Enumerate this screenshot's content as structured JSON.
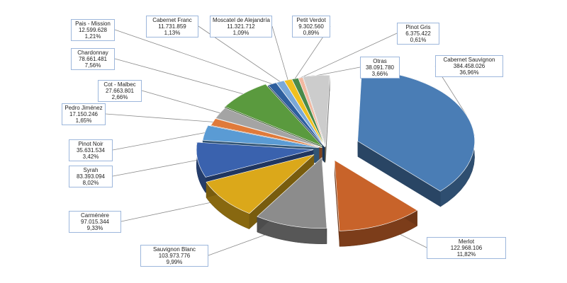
{
  "chart_data": {
    "type": "pie",
    "title": "",
    "categories": [
      "Cabernet Sauvignon",
      "Merlot",
      "Sauvignon Blanc",
      "Carménère",
      "Syrah",
      "Pinot Noir",
      "Pedro Jiménez",
      "Cot - Malbec",
      "Chardonnay",
      "Pais - Mission",
      "Cabernet Franc",
      "Moscatel de Alejandría",
      "Petit Verdot",
      "Pinot Gris",
      "Otras"
    ],
    "values": [
      384458026,
      122968106,
      103973776,
      97015344,
      83393094,
      35631534,
      17150246,
      27663801,
      78661481,
      12599628,
      11731859,
      11321712,
      9302560,
      6375422,
      38091780
    ],
    "value_labels": [
      "384.458.026",
      "122.968.106",
      "103.973.776",
      "97.015.344",
      "83.393.094",
      "35.631.534",
      "17.150.246",
      "27.663.801",
      "78.661.481",
      "12.599.628",
      "11.731.859",
      "11.321.712",
      "9.302.560",
      "6.375.422",
      "38.091.780"
    ],
    "percent_labels": [
      "36,96%",
      "11,82%",
      "9,99%",
      "9,33%",
      "8,02%",
      "3,42%",
      "1,65%",
      "2,66%",
      "7,56%",
      "1,21%",
      "1,13%",
      "1,09%",
      "0,89%",
      "0,61%",
      "3,66%"
    ],
    "colors": [
      "#4a7db5",
      "#c8632a",
      "#8c8c8c",
      "#dba81a",
      "#3a62ae",
      "#5a9bd4",
      "#e07a3a",
      "#a4a4a4",
      "#5a9a3e",
      "#2e5f9e",
      "#7aa8d8",
      "#f0c020",
      "#4a8a4a",
      "#f2b8a0",
      "#cccccc"
    ],
    "style": "3d-exploded",
    "legend": "none"
  }
}
